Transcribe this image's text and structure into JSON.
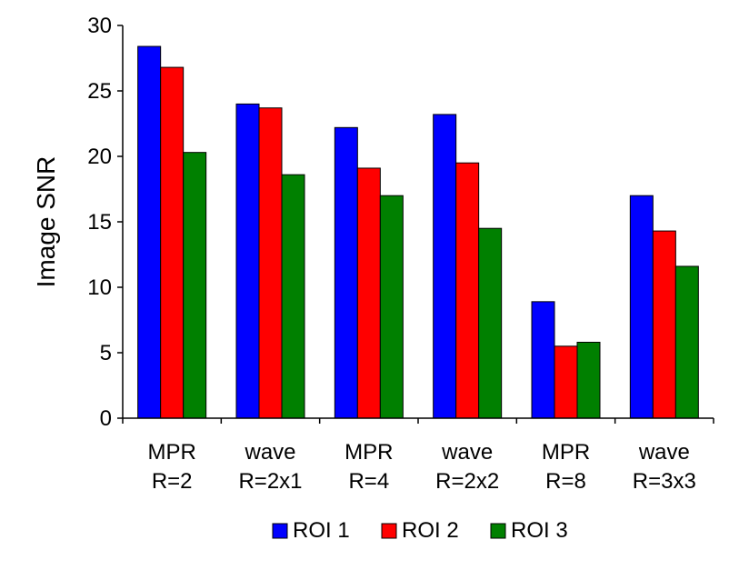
{
  "chart_data": {
    "type": "bar",
    "title": "",
    "xlabel": "",
    "ylabel": "Image SNR",
    "ylim": [
      0,
      30
    ],
    "yticks": [
      0,
      5,
      10,
      15,
      20,
      25,
      30
    ],
    "grid": false,
    "legend_position": "bottom",
    "categories": [
      [
        "MPR",
        "R=2"
      ],
      [
        "wave",
        "R=2x1"
      ],
      [
        "MPR",
        "R=4"
      ],
      [
        "wave",
        "R=2x2"
      ],
      [
        "MPR",
        "R=8"
      ],
      [
        "wave",
        "R=3x3"
      ]
    ],
    "series": [
      {
        "name": "ROI 1",
        "color": "#0000ff",
        "values": [
          28.4,
          24.0,
          22.2,
          23.2,
          8.9,
          17.0
        ]
      },
      {
        "name": "ROI 2",
        "color": "#ff0000",
        "values": [
          26.8,
          23.7,
          19.1,
          19.5,
          5.5,
          14.3
        ]
      },
      {
        "name": "ROI 3",
        "color": "#008000",
        "values": [
          20.3,
          18.6,
          17.0,
          14.5,
          5.8,
          11.6
        ]
      }
    ]
  }
}
